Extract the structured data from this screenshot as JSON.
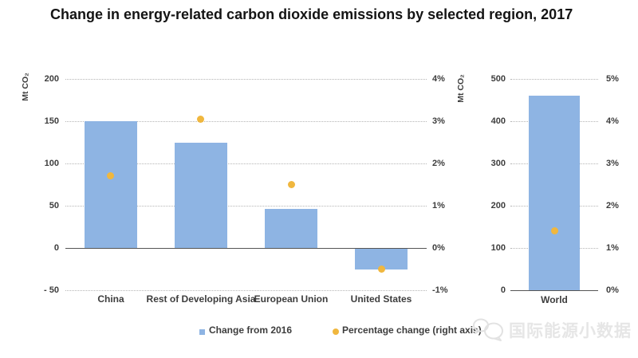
{
  "title": "Change in energy-related carbon dioxide emissions by selected region, 2017",
  "colors": {
    "bar": "#8EB4E3",
    "dot": "#F0B73E",
    "zero_line": "#555555",
    "grid": "#B5B5B5"
  },
  "legend": {
    "bar_label": "Change from 2016",
    "dot_label": "Percentage change (right axis)"
  },
  "watermark": {
    "text": "国际能源小数据",
    "icon": "chat-bubbles-icon"
  },
  "chart_data": [
    {
      "id": "left",
      "type": "bar",
      "title": "",
      "categories": [
        "China",
        "Rest of Developing Asia",
        "European Union",
        "United States"
      ],
      "series": [
        {
          "name": "Change from 2016",
          "type": "bar",
          "axis": "left",
          "unit": "Mt CO2",
          "values": [
            150,
            125,
            46,
            -25
          ]
        },
        {
          "name": "Percentage change (right axis)",
          "type": "scatter",
          "axis": "right",
          "unit": "%",
          "values": [
            1.7,
            3.05,
            1.5,
            -0.5
          ]
        }
      ],
      "left_axis": {
        "label": "Mt CO₂",
        "range": [
          -50,
          200
        ],
        "ticks": [
          {
            "value": 200,
            "label": "200"
          },
          {
            "value": 150,
            "label": "150"
          },
          {
            "value": 100,
            "label": "100"
          },
          {
            "value": 50,
            "label": "50"
          },
          {
            "value": 0,
            "label": "0"
          },
          {
            "value": -50,
            "label": "- 50"
          }
        ]
      },
      "right_axis": {
        "range": [
          -1,
          4
        ],
        "ticks": [
          {
            "value": 4,
            "label": "4%"
          },
          {
            "value": 3,
            "label": "3%"
          },
          {
            "value": 2,
            "label": "2%"
          },
          {
            "value": 1,
            "label": "1%"
          },
          {
            "value": 0,
            "label": "0%"
          },
          {
            "value": -1,
            "label": "-1%"
          }
        ]
      },
      "grid": "horizontal dotted"
    },
    {
      "id": "right",
      "type": "bar",
      "title": "",
      "categories": [
        "World"
      ],
      "series": [
        {
          "name": "Change from 2016",
          "type": "bar",
          "axis": "left",
          "unit": "Mt CO2",
          "values": [
            460
          ]
        },
        {
          "name": "Percentage change (right axis)",
          "type": "scatter",
          "axis": "right",
          "unit": "%",
          "values": [
            1.4
          ]
        }
      ],
      "left_axis": {
        "label": "Mt CO₂",
        "range": [
          0,
          500
        ],
        "ticks": [
          {
            "value": 500,
            "label": "500"
          },
          {
            "value": 400,
            "label": "400"
          },
          {
            "value": 300,
            "label": "300"
          },
          {
            "value": 200,
            "label": "200"
          },
          {
            "value": 100,
            "label": "100"
          },
          {
            "value": 0,
            "label": "0"
          }
        ]
      },
      "right_axis": {
        "range": [
          0,
          5
        ],
        "ticks": [
          {
            "value": 5,
            "label": "5%"
          },
          {
            "value": 4,
            "label": "4%"
          },
          {
            "value": 3,
            "label": "3%"
          },
          {
            "value": 2,
            "label": "2%"
          },
          {
            "value": 1,
            "label": "1%"
          },
          {
            "value": 0,
            "label": "0%"
          }
        ]
      },
      "grid": "horizontal dotted"
    }
  ]
}
